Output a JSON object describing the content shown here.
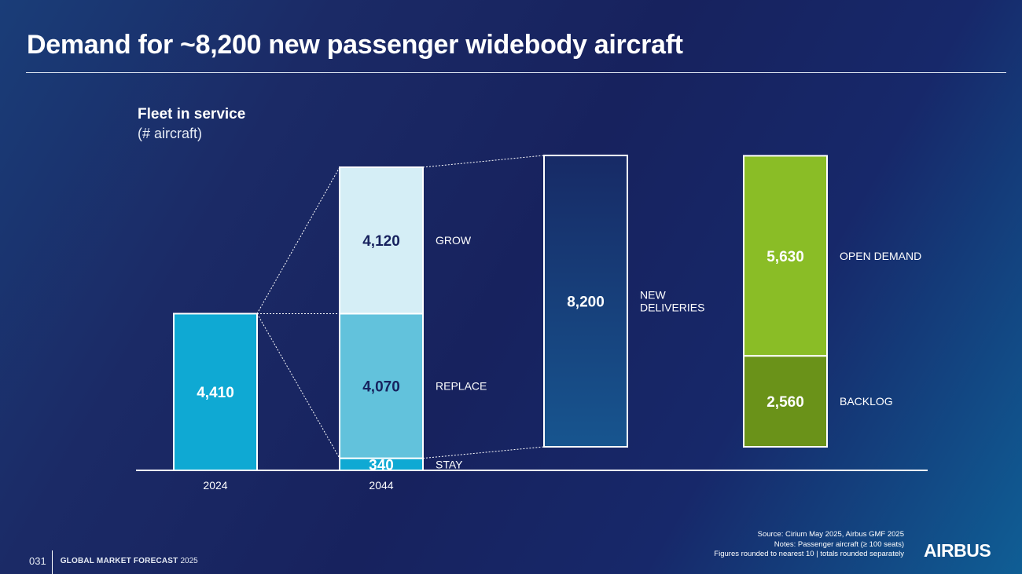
{
  "header": {
    "title": "Demand for ~8,200 new passenger widebody aircraft"
  },
  "chart_data": {
    "type": "bar",
    "title": "Fleet in service",
    "subtitle": "(# aircraft)",
    "categories": [
      "2024",
      "2044"
    ],
    "bars": [
      {
        "category": "2024",
        "segments": [
          {
            "label": "",
            "value": 4410,
            "display": "4,410",
            "color": "#0fa9d3"
          }
        ]
      },
      {
        "category": "2044",
        "segments": [
          {
            "label": "STAY",
            "value": 340,
            "display": "340",
            "color": "#0fa9d3"
          },
          {
            "label": "REPLACE",
            "value": 4070,
            "display": "4,070",
            "color": "#62c2dc"
          },
          {
            "label": "GROW",
            "value": 4120,
            "display": "4,120",
            "color": "#d5eef6"
          }
        ]
      },
      {
        "category": "",
        "segments": [
          {
            "label": "NEW DELIVERIES",
            "value": 8200,
            "display": "8,200",
            "color": "#16386f"
          }
        ]
      },
      {
        "category": "",
        "segments": [
          {
            "label": "BACKLOG",
            "value": 2560,
            "display": "2,560",
            "color": "#6a9219"
          },
          {
            "label": "OPEN DEMAND",
            "value": 5630,
            "display": "5,630",
            "color": "#8abd26"
          }
        ]
      }
    ],
    "colors": {
      "label_dark": "#17225e",
      "label_light": "#ffffff",
      "outline": "#ffffff"
    }
  },
  "footer": {
    "page_number": "031",
    "brand": "GLOBAL MARKET FORECAST",
    "year": "2025",
    "notes": [
      "Source: Cirium May 2025, Airbus GMF 2025",
      "Notes: Passenger aircraft (≥ 100 seats)",
      "Figures rounded to nearest 10 | totals rounded separately"
    ],
    "logo": "AIRBUS"
  }
}
